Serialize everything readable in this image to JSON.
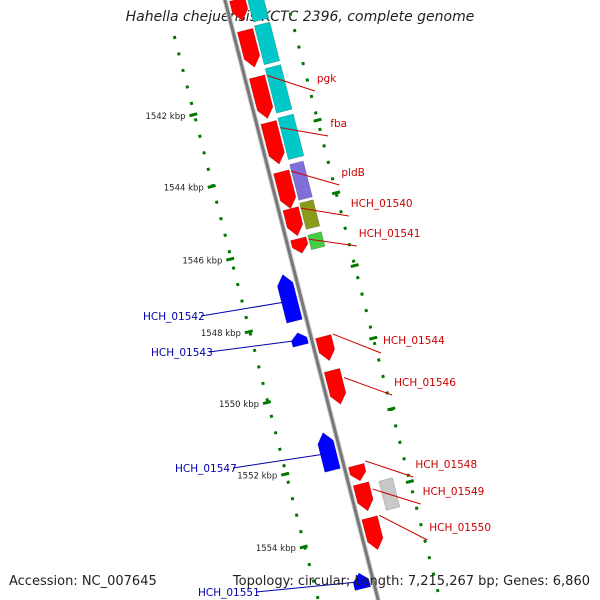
{
  "title": "Hahella chejuensis KCTC 2396, complete genome",
  "footer": {
    "accession": "Accession: NC_007645",
    "summary": "Topology: circular; Length: 7,215,267 bp; Genes: 6,860"
  },
  "colors": {
    "forward_gene": "#ff0000",
    "reverse_gene": "#0000ff",
    "forward_label": "#cc0000",
    "reverse_label": "#0000aa",
    "tick": "#007700",
    "backbone": "#777777"
  },
  "ticks": [
    {
      "label": "1542 kbp"
    },
    {
      "label": "1544 kbp"
    },
    {
      "label": "1546 kbp"
    },
    {
      "label": "1548 kbp"
    },
    {
      "label": "1550 kbp"
    },
    {
      "label": "1552 kbp"
    },
    {
      "label": "1554 kbp"
    }
  ],
  "forward_labels": [
    "pgk",
    "fba",
    "pldB",
    "HCH_01540",
    "HCH_01541",
    "HCH_01544",
    "HCH_01546",
    "HCH_01548",
    "HCH_01549",
    "HCH_01550"
  ],
  "reverse_labels": [
    "HCH_01542",
    "HCH_01543",
    "HCH_01547",
    "HCH_01551"
  ]
}
